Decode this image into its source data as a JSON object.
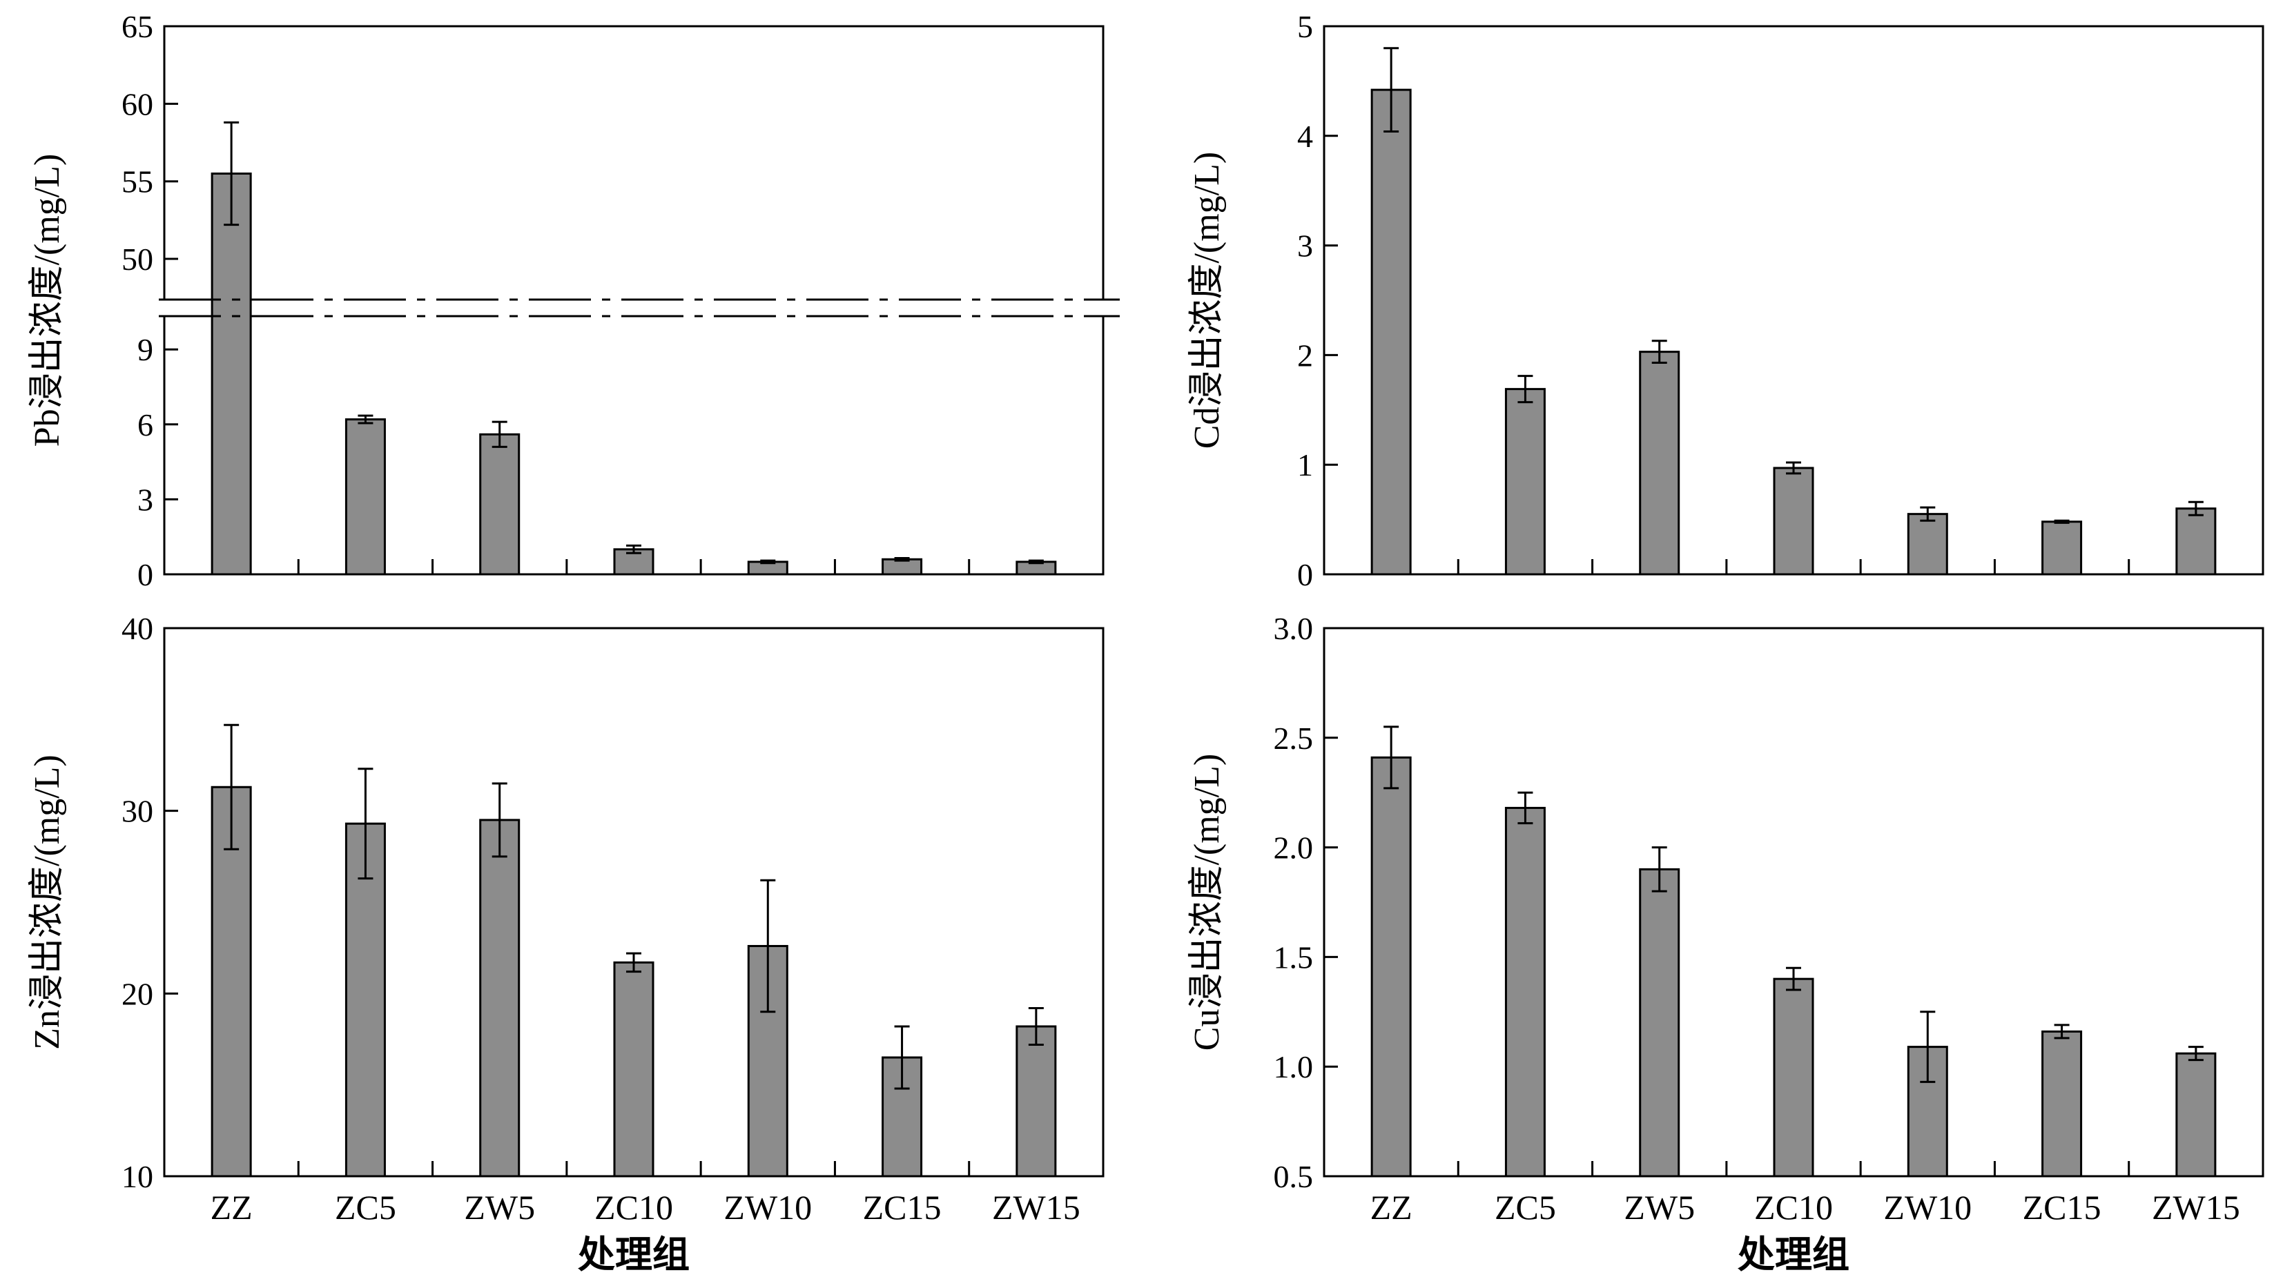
{
  "colors": {
    "bar": "#8c8c8c",
    "outline": "#000000",
    "background": "#ffffff"
  },
  "chart_data": [
    {
      "id": "pb",
      "type": "bar",
      "categories": [
        "ZZ",
        "ZC5",
        "ZW5",
        "ZC10",
        "ZW10",
        "ZC15",
        "ZW15"
      ],
      "values": [
        55.5,
        6.2,
        5.6,
        1.0,
        0.5,
        0.6,
        0.5
      ],
      "errors": [
        3.3,
        0.15,
        0.5,
        0.15,
        0.05,
        0.05,
        0.05
      ],
      "ylabel": "Pb浸出浓度/(mg/L)",
      "xlabel": "",
      "axis_break": {
        "lower": [
          0,
          10
        ],
        "upper": [
          48,
          65
        ]
      },
      "yticks_lower": [
        "0",
        "3",
        "6",
        "9"
      ],
      "yticks_upper": [
        "50",
        "55",
        "60",
        "65"
      ],
      "show_category_labels": false,
      "grid": false
    },
    {
      "id": "cd",
      "type": "bar",
      "categories": [
        "ZZ",
        "ZC5",
        "ZW5",
        "ZC10",
        "ZW10",
        "ZC15",
        "ZW15"
      ],
      "values": [
        4.42,
        1.69,
        2.03,
        0.97,
        0.55,
        0.48,
        0.6
      ],
      "errors": [
        0.38,
        0.12,
        0.1,
        0.05,
        0.06,
        0.01,
        0.06
      ],
      "ylabel": "Cd浸出浓度/(mg/L)",
      "xlabel": "",
      "ylim": [
        0,
        5
      ],
      "yticks": [
        "0",
        "1",
        "2",
        "3",
        "4",
        "5"
      ],
      "show_category_labels": false,
      "grid": false
    },
    {
      "id": "zn",
      "type": "bar",
      "categories": [
        "ZZ",
        "ZC5",
        "ZW5",
        "ZC10",
        "ZW10",
        "ZC15",
        "ZW15"
      ],
      "values": [
        31.3,
        29.3,
        29.5,
        21.7,
        22.6,
        16.5,
        18.2
      ],
      "errors": [
        3.4,
        3.0,
        2.0,
        0.5,
        3.6,
        1.7,
        1.0
      ],
      "ylabel": "Zn浸出浓度/(mg/L)",
      "xlabel": "处理组",
      "ylim": [
        10,
        40
      ],
      "yticks": [
        "10",
        "20",
        "30",
        "40"
      ],
      "show_category_labels": true,
      "grid": false
    },
    {
      "id": "cu",
      "type": "bar",
      "categories": [
        "ZZ",
        "ZC5",
        "ZW5",
        "ZC10",
        "ZW10",
        "ZC15",
        "ZW15"
      ],
      "values": [
        2.41,
        2.18,
        1.9,
        1.4,
        1.09,
        1.16,
        1.06
      ],
      "errors": [
        0.14,
        0.07,
        0.1,
        0.05,
        0.16,
        0.03,
        0.03
      ],
      "ylabel": "Cu浸出浓度/(mg/L)",
      "xlabel": "处理组",
      "ylim": [
        0.5,
        3.0
      ],
      "yticks": [
        "0.5",
        "1.0",
        "1.5",
        "2.0",
        "2.5",
        "3.0"
      ],
      "show_category_labels": true,
      "grid": false
    }
  ]
}
